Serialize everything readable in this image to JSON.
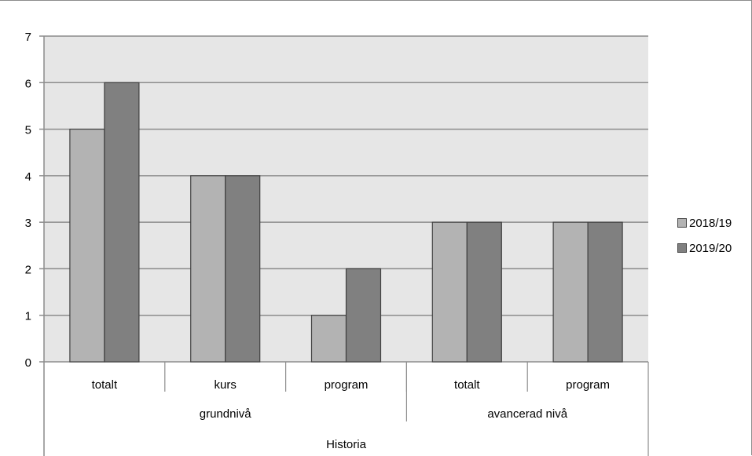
{
  "chart_data": {
    "type": "bar",
    "ylim": [
      0,
      7
    ],
    "yticks": [
      "0",
      "1",
      "2",
      "3",
      "4",
      "5",
      "6",
      "7"
    ],
    "categories": [
      "totalt",
      "kurs",
      "program",
      "totalt",
      "program"
    ],
    "groups": [
      {
        "label": "grundnivå",
        "span": 3
      },
      {
        "label": "avancerad nivå",
        "span": 2
      }
    ],
    "top_group": "Historia",
    "series": [
      {
        "name": "2018/19",
        "color": "#b3b3b3",
        "values": [
          5,
          4,
          1,
          3,
          3
        ]
      },
      {
        "name": "2019/20",
        "color": "#808080",
        "values": [
          6,
          4,
          2,
          3,
          3
        ]
      }
    ],
    "grid": true,
    "plot_background": "#e6e6e6",
    "legend": "right"
  }
}
